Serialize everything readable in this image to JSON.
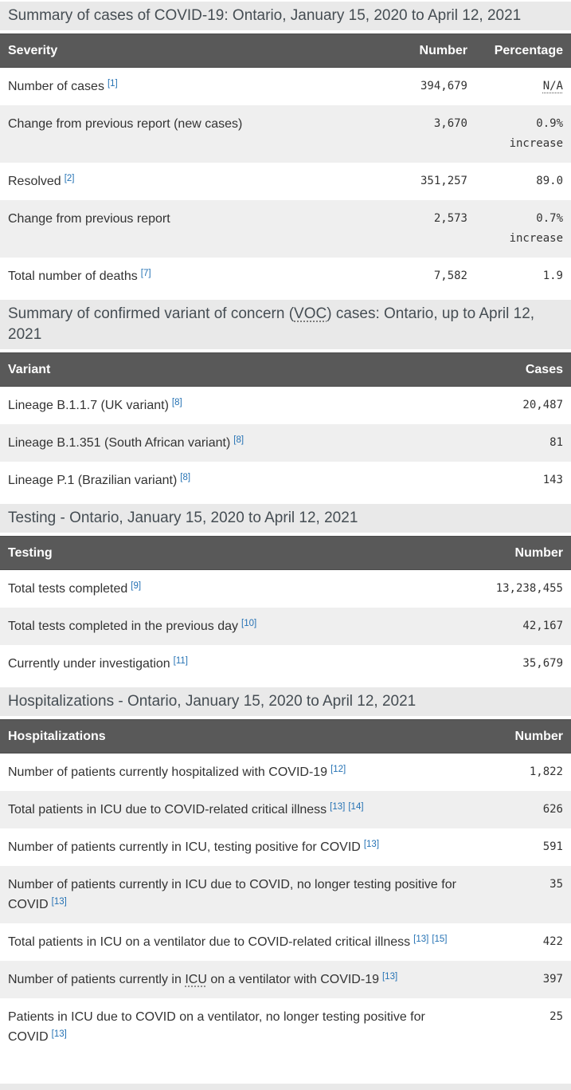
{
  "colors": {
    "header_bg": "#595959",
    "stripe_bg": "#efefef",
    "caption_bg": "#e9e9e9",
    "link_blue": "#2572b4",
    "caption_text": "#454d53",
    "body_text": "#333333"
  },
  "tables": [
    {
      "id": "cases-summary",
      "caption": "Summary of cases of COVID-19: Ontario, January 15, 2020 to April 12, 2021",
      "columns": [
        "Severity",
        "Number",
        "Percentage"
      ],
      "rows": [
        {
          "label": "Number of cases",
          "refs": [
            "[1]"
          ],
          "number": "394,679",
          "percentage": [
            "N/A"
          ],
          "percentage_abbr": "N/A"
        },
        {
          "label": "Change from previous report (new cases)",
          "refs": [],
          "number": "3,670",
          "percentage": [
            "0.9%",
            "increase"
          ]
        },
        {
          "label": "Resolved",
          "refs": [
            "[2]"
          ],
          "number": "351,257",
          "percentage": [
            "89.0"
          ]
        },
        {
          "label": "Change from previous report",
          "refs": [],
          "number": "2,573",
          "percentage": [
            "0.7%",
            "increase"
          ]
        },
        {
          "label": "Total number of deaths",
          "refs": [
            "[7]"
          ],
          "number": "7,582",
          "percentage": [
            "1.9"
          ]
        }
      ]
    },
    {
      "id": "variant-summary",
      "caption": "Summary of confirmed variant of concern (VOC) cases: Ontario, up to April 12, 2021",
      "caption_abbr": "VOC",
      "columns": [
        "Variant",
        "Cases"
      ],
      "rows": [
        {
          "label": "Lineage B.1.1.7 (UK variant)",
          "refs": [
            "[8]"
          ],
          "number": "20,487"
        },
        {
          "label": "Lineage B.1.351 (South African variant)",
          "refs": [
            "[8]"
          ],
          "number": "81"
        },
        {
          "label": "Lineage P.1 (Brazilian variant)",
          "refs": [
            "[8]"
          ],
          "number": "143"
        }
      ]
    },
    {
      "id": "testing",
      "caption": "Testing - Ontario, January 15, 2020 to April 12, 2021",
      "columns": [
        "Testing",
        "Number"
      ],
      "rows": [
        {
          "label": "Total tests completed",
          "refs": [
            "[9]"
          ],
          "number": "13,238,455"
        },
        {
          "label": "Total tests completed in the previous day",
          "refs": [
            "[10]"
          ],
          "number": "42,167"
        },
        {
          "label": "Currently under investigation",
          "refs": [
            "[11]"
          ],
          "number": "35,679"
        }
      ]
    },
    {
      "id": "hospitalizations",
      "caption": "Hospitalizations - Ontario, January 15, 2020 to April 12, 2021",
      "columns": [
        "Hospitalizations",
        "Number"
      ],
      "rows": [
        {
          "label": "Number of patients currently hospitalized with COVID-19",
          "refs": [
            "[12]"
          ],
          "number": "1,822"
        },
        {
          "label": "Total patients in ICU due to COVID-related critical illness",
          "refs": [
            "[13]",
            "[14]"
          ],
          "number": "626"
        },
        {
          "label": "Number of patients currently in ICU, testing positive for COVID",
          "refs": [
            "[13]"
          ],
          "number": "591"
        },
        {
          "label": "Number of patients currently in ICU due to COVID, no longer testing positive for COVID",
          "refs": [
            "[13]"
          ],
          "number": "35"
        },
        {
          "label": "Total patients in ICU on a ventilator due to COVID-related critical illness",
          "refs": [
            "[13]",
            "[15]"
          ],
          "number": "422"
        },
        {
          "label": "Number of patients currently in ICU on a ventilator with COVID-19",
          "refs": [
            "[13]"
          ],
          "number": "397",
          "label_abbr": "ICU"
        },
        {
          "label": "Patients in ICU due to COVID on a ventilator, no longer testing positive for COVID",
          "refs": [
            "[13]"
          ],
          "number": "25"
        }
      ]
    }
  ]
}
